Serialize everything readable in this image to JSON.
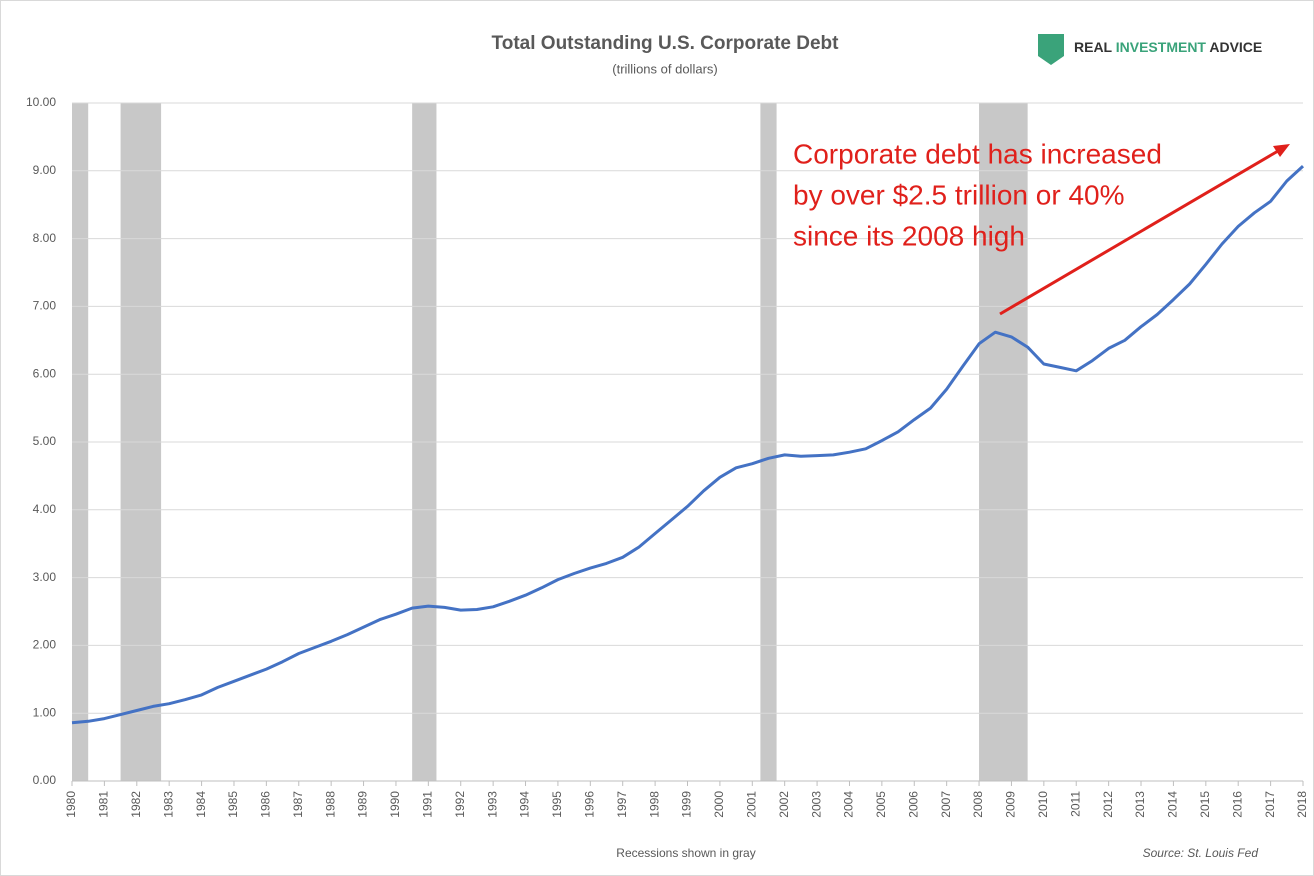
{
  "chart_data": {
    "type": "line",
    "title": "Total Outstanding U.S. Corporate Debt",
    "subtitle": "(trillions of dollars)",
    "brand": [
      "REAL",
      "INVESTMENT",
      "ADVICE"
    ],
    "annotation": [
      "Corporate debt has increased",
      "by over $2.5 trillion or 40%",
      "since its 2008 high"
    ],
    "footnote": "Recessions shown in gray",
    "source": "Source: St. Louis Fed",
    "xlim": [
      1980,
      2018
    ],
    "xticks": [
      1980,
      1981,
      1982,
      1983,
      1984,
      1985,
      1986,
      1987,
      1988,
      1989,
      1990,
      1991,
      1992,
      1993,
      1994,
      1995,
      1996,
      1997,
      1998,
      1999,
      2000,
      2001,
      2002,
      2003,
      2004,
      2005,
      2006,
      2007,
      2008,
      2009,
      2010,
      2011,
      2012,
      2013,
      2014,
      2015,
      2016,
      2017,
      2018
    ],
    "ylim": [
      0,
      10
    ],
    "yticks": [
      {
        "value": 0,
        "label": "0.00"
      },
      {
        "value": 1,
        "label": "1.00"
      },
      {
        "value": 2,
        "label": "2.00"
      },
      {
        "value": 3,
        "label": "3.00"
      },
      {
        "value": 4,
        "label": "4.00"
      },
      {
        "value": 5,
        "label": "5.00"
      },
      {
        "value": 6,
        "label": "6.00"
      },
      {
        "value": 7,
        "label": "7.00"
      },
      {
        "value": 8,
        "label": "8.00"
      },
      {
        "value": 9,
        "label": "9.00"
      },
      {
        "value": 10,
        "label": "10.00"
      }
    ],
    "grid": true,
    "recession_color": "#c8c8c8",
    "recessions": [
      [
        1980,
        1980.5
      ],
      [
        1981.5,
        1982.75
      ],
      [
        1990.5,
        1991.25
      ],
      [
        2001.25,
        2001.75
      ],
      [
        2008,
        2009.5
      ]
    ],
    "x": [
      1980,
      1980.5,
      1981,
      1981.5,
      1982,
      1982.5,
      1983,
      1983.5,
      1984,
      1984.5,
      1985,
      1985.5,
      1986,
      1986.5,
      1987,
      1987.5,
      1988,
      1988.5,
      1989,
      1989.5,
      1990,
      1990.5,
      1991,
      1991.5,
      1992,
      1992.5,
      1993,
      1993.5,
      1994,
      1994.5,
      1995,
      1995.5,
      1996,
      1996.5,
      1997,
      1997.5,
      1998,
      1998.5,
      1999,
      1999.5,
      2000,
      2000.5,
      2001,
      2001.5,
      2002,
      2002.5,
      2003,
      2003.5,
      2004,
      2004.5,
      2005,
      2005.5,
      2006,
      2006.5,
      2007,
      2007.5,
      2008,
      2008.5,
      2009,
      2009.5,
      2010,
      2010.5,
      2011,
      2011.5,
      2012,
      2012.5,
      2013,
      2013.5,
      2014,
      2014.5,
      2015,
      2015.5,
      2016,
      2016.5,
      2017,
      2017.5,
      2018
    ],
    "series": [
      {
        "color": "#4472c4",
        "values": [
          0.86,
          0.88,
          0.92,
          0.98,
          1.04,
          1.1,
          1.14,
          1.2,
          1.27,
          1.38,
          1.47,
          1.56,
          1.65,
          1.76,
          1.88,
          1.97,
          2.06,
          2.16,
          2.27,
          2.38,
          2.46,
          2.55,
          2.58,
          2.56,
          2.52,
          2.53,
          2.57,
          2.65,
          2.74,
          2.85,
          2.97,
          3.06,
          3.14,
          3.21,
          3.3,
          3.45,
          3.65,
          3.85,
          4.05,
          4.28,
          4.48,
          4.62,
          4.68,
          4.76,
          4.81,
          4.79,
          4.8,
          4.81,
          4.85,
          4.9,
          5.02,
          5.15,
          5.33,
          5.5,
          5.78,
          6.12,
          6.45,
          6.62,
          6.55,
          6.4,
          6.15,
          6.1,
          6.05,
          6.2,
          6.38,
          6.5,
          6.7,
          6.88,
          7.1,
          7.33,
          7.62,
          7.92,
          8.18,
          8.38,
          8.55,
          8.85,
          9.07
        ]
      }
    ]
  }
}
